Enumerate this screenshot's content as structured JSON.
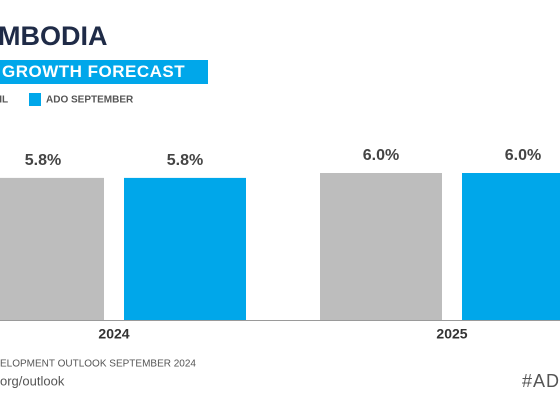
{
  "chart_data": {
    "type": "bar",
    "title": "MBODIA",
    "subtitle": "GROWTH FORECAST",
    "categories": [
      "2024",
      "2025"
    ],
    "series": [
      {
        "name": "RIL",
        "color": "#bdbdbd",
        "values": [
          5.8,
          6.0
        ],
        "value_labels": [
          "5.8%",
          "6.0%"
        ]
      },
      {
        "name": "ADO SEPTEMBER",
        "color": "#00a7ea",
        "values": [
          5.8,
          6.0
        ],
        "value_labels": [
          "5.8%",
          "6.0%"
        ]
      }
    ],
    "source": "ELOPMENT OUTLOOK SEPTEMBER 2024",
    "url": "org/outlook",
    "hashtag": "#AD"
  }
}
